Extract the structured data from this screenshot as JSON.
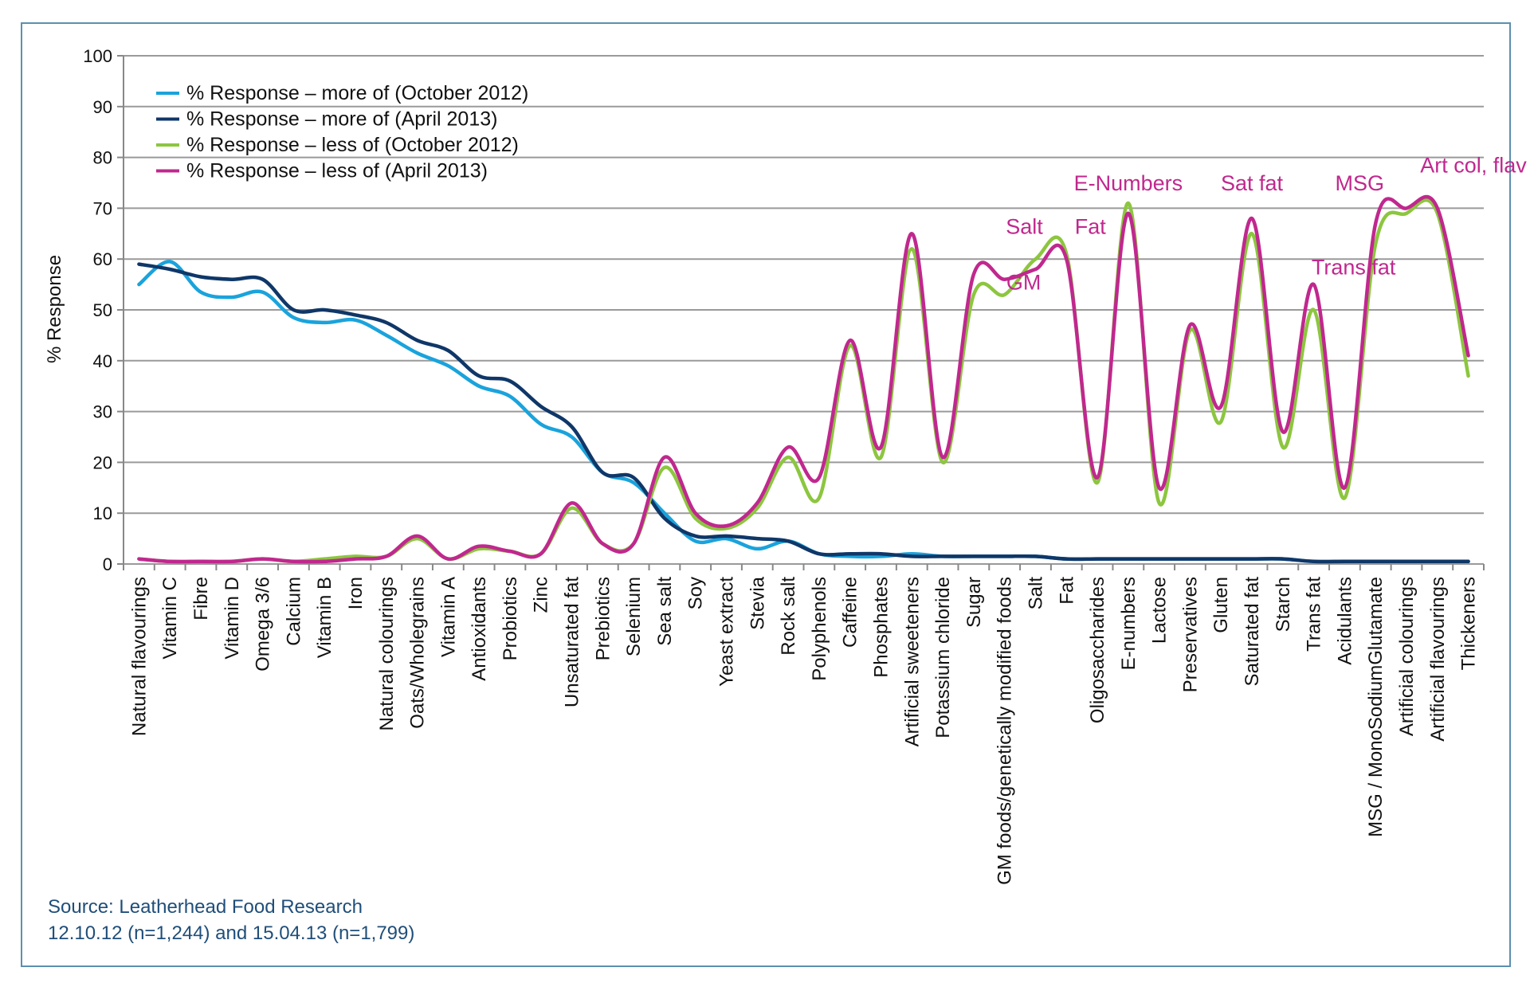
{
  "chart_data": {
    "type": "line",
    "title": "",
    "xlabel": "",
    "ylabel": "% Response",
    "ylim": [
      0,
      100
    ],
    "yticks": [
      0,
      10,
      20,
      30,
      40,
      50,
      60,
      70,
      80,
      90,
      100
    ],
    "grid": true,
    "legend_position": "top-left",
    "categories": [
      "Natural flavourings",
      "Vitamin C",
      "Fibre",
      "Vitamin D",
      "Omega 3/6",
      "Calcium",
      "Vitamin B",
      "Iron",
      "Natural colourings",
      "Oats/Wholegrains",
      "Vitamin A",
      "Antioxidants",
      "Probiotics",
      "Zinc",
      "Unsaturated fat",
      "Prebiotics",
      "Selenium",
      "Sea salt",
      "Soy",
      "Yeast extract",
      "Stevia",
      "Rock salt",
      "Polyphenols",
      "Caffeine",
      "Phosphates",
      "Artificial sweeteners",
      "Potassium chloride",
      "Sugar",
      "GM foods/genetically modified foods",
      "Salt",
      "Fat",
      "Oligosaccharides",
      "E-numbers",
      "Lactose",
      "Preservatives",
      "Gluten",
      "Saturated fat",
      "Starch",
      "Trans fat",
      "Acidulants",
      "MSG / MonoSodiumGlutamate",
      "Artificial colourings",
      "Artificial flavourings",
      "Thickeners"
    ],
    "series": [
      {
        "name": "% Response – more of (October 2012)",
        "color": "#1aa3dc",
        "values": [
          55,
          59.5,
          53.5,
          52.5,
          53.5,
          48.5,
          47.5,
          48,
          45,
          41.5,
          39,
          35,
          33,
          27.5,
          25,
          18,
          16,
          10,
          4.5,
          5,
          3,
          4.5,
          2,
          1.5,
          1.5,
          2,
          1.5,
          1.5,
          1.5,
          1.5,
          1,
          1,
          1,
          1,
          1,
          1,
          1,
          1,
          0.5,
          0.5,
          0.5,
          0.5,
          0.5,
          0.5
        ]
      },
      {
        "name": "% Response – more of (April 2013)",
        "color": "#0f3768",
        "values": [
          59,
          58,
          56.5,
          56,
          56,
          50,
          50,
          49,
          47.5,
          44,
          42,
          37,
          36,
          31,
          27,
          18,
          17,
          9,
          5.5,
          5.5,
          5,
          4.5,
          2,
          2,
          2,
          1.5,
          1.5,
          1.5,
          1.5,
          1.5,
          1,
          1,
          1,
          1,
          1,
          1,
          1,
          1,
          0.5,
          0.5,
          0.5,
          0.5,
          0.5,
          0.5
        ]
      },
      {
        "name": "% Response – less of (October 2012)",
        "color": "#8cc63f",
        "values": [
          1,
          0.5,
          0.5,
          0.5,
          1,
          0.5,
          1,
          1.5,
          1.5,
          5,
          1,
          3,
          2.5,
          2,
          11,
          4,
          4,
          19,
          9,
          7,
          11,
          21,
          13,
          43,
          21,
          62,
          20,
          53,
          53,
          60,
          61,
          16,
          71,
          12,
          46,
          28,
          65,
          23,
          50,
          13,
          63,
          69,
          69,
          37
        ]
      },
      {
        "name": "% Response – less of (April 2013)",
        "color": "#c0288e",
        "values": [
          1,
          0.5,
          0.5,
          0.5,
          1,
          0.5,
          0.5,
          1,
          1.5,
          5.5,
          1,
          3.5,
          2.5,
          2,
          12,
          4,
          4,
          21,
          10,
          7.5,
          12,
          23,
          17,
          44,
          23,
          65,
          21,
          57,
          56,
          58,
          60,
          17,
          69,
          15,
          47,
          31,
          68,
          26,
          55,
          15,
          67,
          70,
          70,
          41
        ]
      }
    ],
    "annotations": [
      {
        "text": "Salt",
        "x": "Salt",
        "y": 65
      },
      {
        "text": "Fat",
        "x": "Fat",
        "y": 65
      },
      {
        "text": "E-Numbers",
        "x": "E-numbers",
        "y": 73.5
      },
      {
        "text": "GM",
        "x": "GM foods/genetically modified foods",
        "y": 54
      },
      {
        "text": "Sat fat",
        "x": "Saturated fat",
        "y": 73.5
      },
      {
        "text": "MSG",
        "x": "MSG / MonoSodiumGlutamate",
        "y": 73.5
      },
      {
        "text": "Art col, flav",
        "x": "Artificial colourings",
        "y": 77
      },
      {
        "text": "Trans fat",
        "x": "Trans fat",
        "y": 57
      }
    ]
  },
  "source": {
    "line1": "Source: Leatherhead Food Research",
    "line2": "12.10.12 (n=1,244) and 15.04.13 (n=1,799)"
  }
}
